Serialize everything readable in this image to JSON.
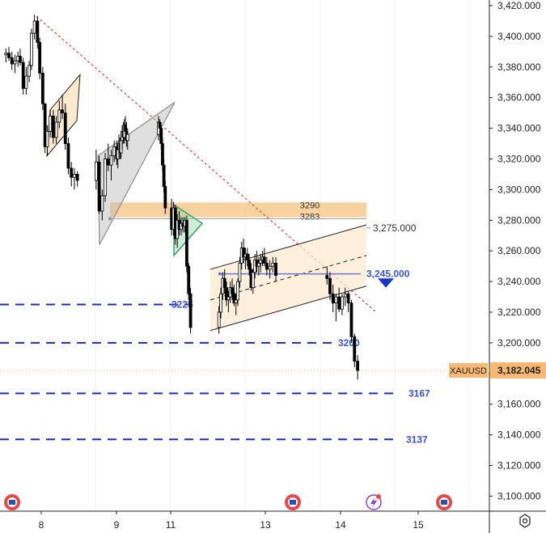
{
  "chart_data": {
    "type": "candlestick",
    "symbol": "XAUUSD",
    "last_price": 3182.045,
    "last_price_label": "3,182.045",
    "ylim": [
      3090,
      3420
    ],
    "y_ticks": [
      {
        "value": 3420,
        "label": "3,420.000"
      },
      {
        "value": 3400,
        "label": "3,400.000"
      },
      {
        "value": 3380,
        "label": "3,380.000"
      },
      {
        "value": 3360,
        "label": "3,360.000"
      },
      {
        "value": 3340,
        "label": "3,340.000"
      },
      {
        "value": 3320,
        "label": "3,320.000"
      },
      {
        "value": 3300,
        "label": "3,300.000"
      },
      {
        "value": 3280,
        "label": "3,280.000"
      },
      {
        "value": 3260,
        "label": "3,260.000"
      },
      {
        "value": 3240,
        "label": "3,240.000"
      },
      {
        "value": 3220,
        "label": "3,220.000"
      },
      {
        "value": 3200,
        "label": "3,200.000"
      },
      {
        "value": 3180,
        "label": "3,180.000"
      },
      {
        "value": 3160,
        "label": "3,160.000"
      },
      {
        "value": 3140,
        "label": "3,140.000"
      },
      {
        "value": 3120,
        "label": "3,120.000"
      },
      {
        "value": 3100,
        "label": "3,100.000"
      }
    ],
    "x_range": [
      7.5,
      15.9
    ],
    "x_ticks": [
      {
        "value": 8,
        "label": "8"
      },
      {
        "value": 9,
        "label": "9"
      },
      {
        "value": 11,
        "label": "11"
      },
      {
        "value": 13,
        "label": "13"
      },
      {
        "value": 14,
        "label": "14"
      },
      {
        "value": 15,
        "label": "15"
      }
    ],
    "candles": [
      [
        7.53,
        3388,
        3392,
        3383,
        3389
      ],
      [
        7.57,
        3389,
        3393,
        3384,
        3386
      ],
      [
        7.61,
        3386,
        3390,
        3378,
        3382
      ],
      [
        7.65,
        3382,
        3388,
        3376,
        3384
      ],
      [
        7.69,
        3384,
        3390,
        3380,
        3387
      ],
      [
        7.72,
        3387,
        3392,
        3381,
        3383
      ],
      [
        7.76,
        3383,
        3386,
        3362,
        3366
      ],
      [
        7.8,
        3366,
        3380,
        3362,
        3374
      ],
      [
        7.84,
        3374,
        3384,
        3370,
        3381
      ],
      [
        7.87,
        3381,
        3405,
        3378,
        3402
      ],
      [
        7.91,
        3402,
        3414,
        3398,
        3410
      ],
      [
        7.95,
        3410,
        3413,
        3392,
        3396
      ],
      [
        7.98,
        3396,
        3399,
        3372,
        3376
      ],
      [
        8.02,
        3376,
        3380,
        3352,
        3356
      ],
      [
        8.05,
        3356,
        3356,
        3324,
        3328
      ],
      [
        8.08,
        3328,
        3342,
        3322,
        3338
      ],
      [
        8.12,
        3338,
        3352,
        3334,
        3348
      ],
      [
        8.16,
        3348,
        3352,
        3330,
        3334
      ],
      [
        8.2,
        3334,
        3348,
        3330,
        3344
      ],
      [
        8.24,
        3344,
        3358,
        3340,
        3352
      ],
      [
        8.28,
        3352,
        3362,
        3346,
        3350
      ],
      [
        8.32,
        3350,
        3356,
        3326,
        3330
      ],
      [
        8.36,
        3330,
        3334,
        3310,
        3314
      ],
      [
        8.4,
        3314,
        3318,
        3302,
        3308
      ],
      [
        8.44,
        3308,
        3314,
        3300,
        3310
      ],
      [
        8.48,
        3310,
        3312,
        3302,
        3306
      ],
      [
        8.73,
        3306,
        3326,
        3300,
        3318
      ],
      [
        8.77,
        3318,
        3322,
        3284,
        3286
      ],
      [
        8.81,
        3286,
        3300,
        3280,
        3296
      ],
      [
        8.85,
        3296,
        3324,
        3292,
        3320
      ],
      [
        8.89,
        3320,
        3330,
        3312,
        3316
      ],
      [
        8.93,
        3316,
        3326,
        3306,
        3322
      ],
      [
        8.97,
        3322,
        3332,
        3318,
        3328
      ],
      [
        9.01,
        3328,
        3332,
        3316,
        3320
      ],
      [
        9.05,
        3320,
        3330,
        3314,
        3326
      ],
      [
        9.09,
        3326,
        3336,
        3320,
        3330
      ],
      [
        9.13,
        3330,
        3334,
        3320,
        3324
      ],
      [
        9.17,
        3324,
        3336,
        3320,
        3332
      ],
      [
        9.21,
        3332,
        3342,
        3326,
        3338
      ],
      [
        9.25,
        3338,
        3344,
        3330,
        3334
      ],
      [
        9.29,
        3334,
        3346,
        3330,
        3342
      ],
      [
        9.33,
        3342,
        3348,
        3336,
        3338
      ],
      [
        9.37,
        3338,
        3344,
        3328,
        3332
      ],
      [
        9.41,
        3332,
        3340,
        3326,
        3336
      ],
      [
        10.55,
        3336,
        3348,
        3332,
        3344
      ],
      [
        10.6,
        3344,
        3346,
        3334,
        3340
      ],
      [
        10.65,
        3340,
        3342,
        3326,
        3330
      ],
      [
        10.7,
        3330,
        3334,
        3312,
        3316
      ],
      [
        10.75,
        3316,
        3320,
        3298,
        3302
      ],
      [
        10.8,
        3302,
        3306,
        3284,
        3288
      ],
      [
        11.02,
        3288,
        3294,
        3270,
        3274
      ],
      [
        11.06,
        3274,
        3292,
        3270,
        3288
      ],
      [
        11.1,
        3288,
        3290,
        3264,
        3268
      ],
      [
        11.14,
        3268,
        3284,
        3262,
        3280
      ],
      [
        11.18,
        3280,
        3286,
        3270,
        3274
      ],
      [
        11.22,
        3274,
        3282,
        3270,
        3278
      ],
      [
        11.26,
        3278,
        3282,
        3272,
        3276
      ],
      [
        11.3,
        3276,
        3282,
        3272,
        3280
      ],
      [
        11.34,
        3280,
        3283,
        3246,
        3250
      ],
      [
        11.38,
        3250,
        3252,
        3228,
        3232
      ],
      [
        11.42,
        3232,
        3236,
        3206,
        3210
      ],
      [
        12.02,
        3210,
        3224,
        3206,
        3220
      ],
      [
        12.06,
        3220,
        3236,
        3216,
        3232
      ],
      [
        12.1,
        3232,
        3246,
        3228,
        3242
      ],
      [
        12.14,
        3242,
        3248,
        3232,
        3236
      ],
      [
        12.18,
        3236,
        3240,
        3224,
        3228
      ],
      [
        12.22,
        3228,
        3234,
        3220,
        3230
      ],
      [
        12.26,
        3230,
        3240,
        3226,
        3236
      ],
      [
        12.3,
        3236,
        3242,
        3228,
        3232
      ],
      [
        12.34,
        3232,
        3238,
        3224,
        3226
      ],
      [
        12.38,
        3226,
        3232,
        3218,
        3228
      ],
      [
        12.42,
        3228,
        3242,
        3224,
        3240
      ],
      [
        12.46,
        3240,
        3256,
        3236,
        3252
      ],
      [
        12.5,
        3252,
        3266,
        3248,
        3262
      ],
      [
        12.54,
        3262,
        3268,
        3252,
        3256
      ],
      [
        12.58,
        3256,
        3262,
        3248,
        3258
      ],
      [
        12.62,
        3258,
        3262,
        3250,
        3254
      ],
      [
        12.66,
        3254,
        3258,
        3244,
        3248
      ],
      [
        12.7,
        3248,
        3252,
        3234,
        3236
      ],
      [
        12.74,
        3236,
        3248,
        3232,
        3246
      ],
      [
        12.78,
        3246,
        3258,
        3242,
        3254
      ],
      [
        12.82,
        3254,
        3260,
        3246,
        3250
      ],
      [
        12.86,
        3250,
        3256,
        3244,
        3252
      ],
      [
        12.9,
        3252,
        3258,
        3246,
        3254
      ],
      [
        12.94,
        3254,
        3260,
        3250,
        3256
      ],
      [
        12.98,
        3256,
        3262,
        3250,
        3252
      ],
      [
        13.02,
        3252,
        3256,
        3244,
        3248
      ],
      [
        13.06,
        3248,
        3254,
        3242,
        3250
      ],
      [
        13.1,
        3250,
        3256,
        3246,
        3252
      ],
      [
        13.14,
        3252,
        3256,
        3240,
        3244
      ],
      [
        13.82,
        3244,
        3250,
        3238,
        3242
      ],
      [
        13.86,
        3242,
        3246,
        3228,
        3232
      ],
      [
        13.9,
        3232,
        3238,
        3220,
        3226
      ],
      [
        13.94,
        3226,
        3232,
        3214,
        3230
      ],
      [
        13.98,
        3230,
        3236,
        3220,
        3222
      ],
      [
        14.02,
        3222,
        3232,
        3218,
        3230
      ],
      [
        14.06,
        3230,
        3236,
        3224,
        3232
      ],
      [
        14.1,
        3232,
        3234,
        3220,
        3226
      ],
      [
        14.14,
        3226,
        3228,
        3200,
        3204
      ],
      [
        14.18,
        3204,
        3206,
        3184,
        3188
      ],
      [
        14.22,
        3188,
        3192,
        3176,
        3182
      ]
    ],
    "levels": [
      {
        "value": 3225,
        "label": "3225"
      },
      {
        "value": 3200,
        "label": "3200"
      },
      {
        "value": 3167,
        "label": "3167"
      },
      {
        "value": 3137,
        "label": "3137"
      }
    ],
    "zones": [
      {
        "top": 3290,
        "bottom": 3283,
        "top_label": "3290",
        "bottom_label": "3283"
      }
    ],
    "channel_labels": [
      {
        "value": 3275,
        "label": "3,275.000"
      },
      {
        "value": 3245,
        "label": "3,245.000"
      }
    ],
    "colors": {
      "candle": "#000000",
      "level_line": "#1f2bb5",
      "level_label": "#3b55c9",
      "zone_fill": "#f8c78a",
      "trend_line": "#e0453e",
      "pennant": "#2e9e5e",
      "channel_fill": "#fde9cf",
      "target_arrow": "#1736c9",
      "price_tag": "#f9b873"
    }
  }
}
